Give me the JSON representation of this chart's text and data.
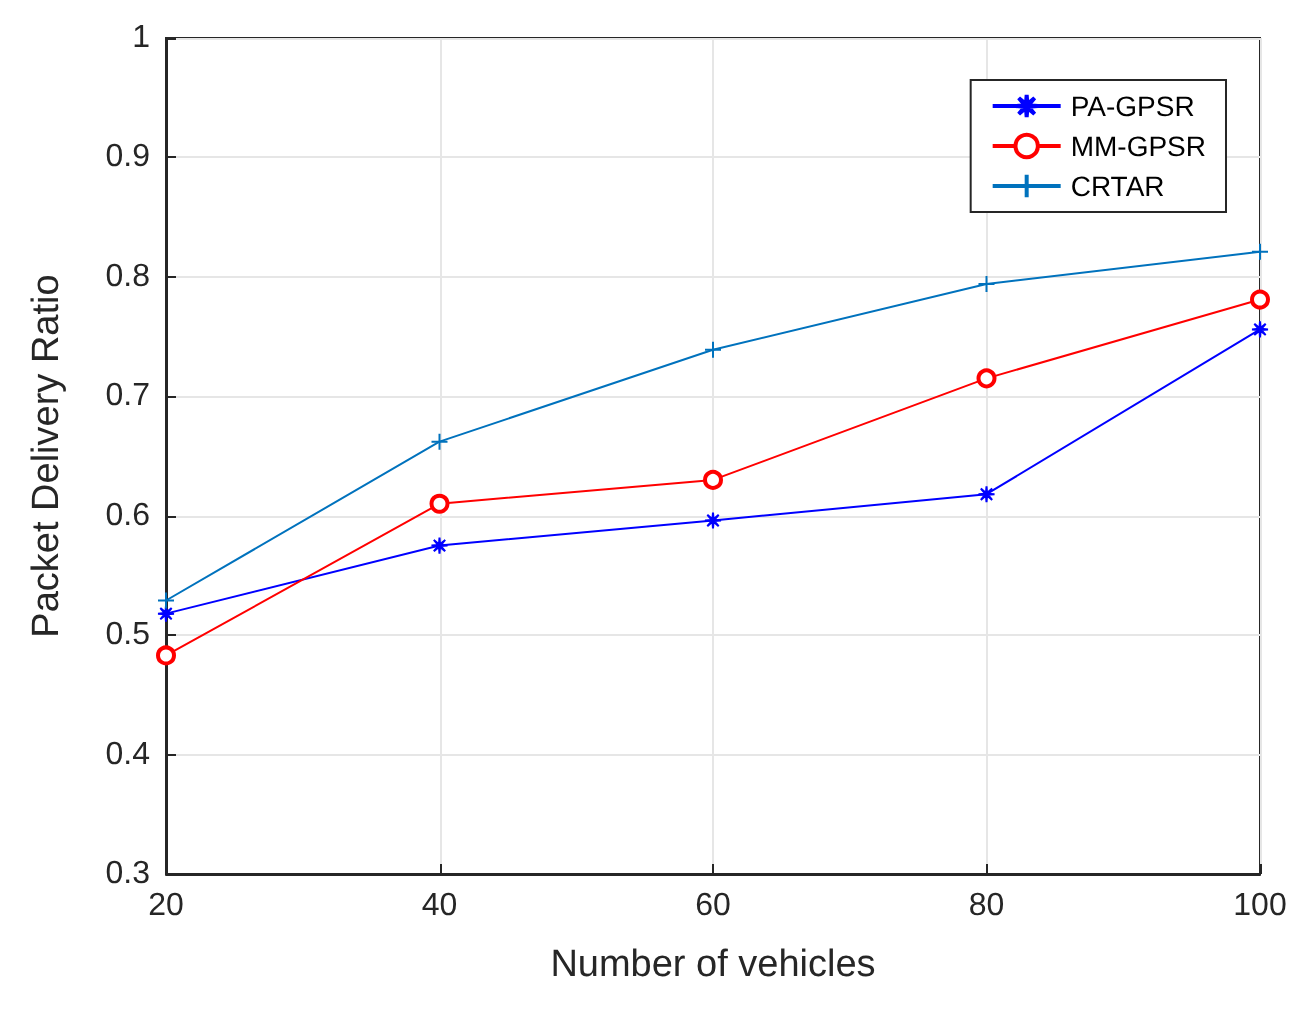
{
  "chart_data": {
    "type": "line",
    "xlabel": "Number of vehicles",
    "ylabel": "Packet Delivery Ratio",
    "x": [
      20,
      40,
      60,
      80,
      100
    ],
    "series": [
      {
        "name": "PA-GPSR",
        "color": "#0000ff",
        "marker": "star",
        "values": [
          0.518,
          0.575,
          0.596,
          0.618,
          0.756
        ]
      },
      {
        "name": "MM-GPSR",
        "color": "#ff0000",
        "marker": "circle",
        "values": [
          0.483,
          0.61,
          0.63,
          0.715,
          0.781
        ]
      },
      {
        "name": "CRTAR",
        "color": "#0072bd",
        "marker": "cross",
        "values": [
          0.529,
          0.662,
          0.739,
          0.794,
          0.821
        ]
      }
    ],
    "xlim": [
      20,
      100
    ],
    "xticks": [
      20,
      40,
      60,
      80,
      100
    ],
    "ylim": [
      0.3,
      1
    ],
    "yticks": [
      0.3,
      0.4,
      0.5,
      0.6,
      0.7,
      0.8,
      0.9,
      1
    ],
    "grid": true,
    "legend": "top right",
    "line_style": "solid"
  }
}
